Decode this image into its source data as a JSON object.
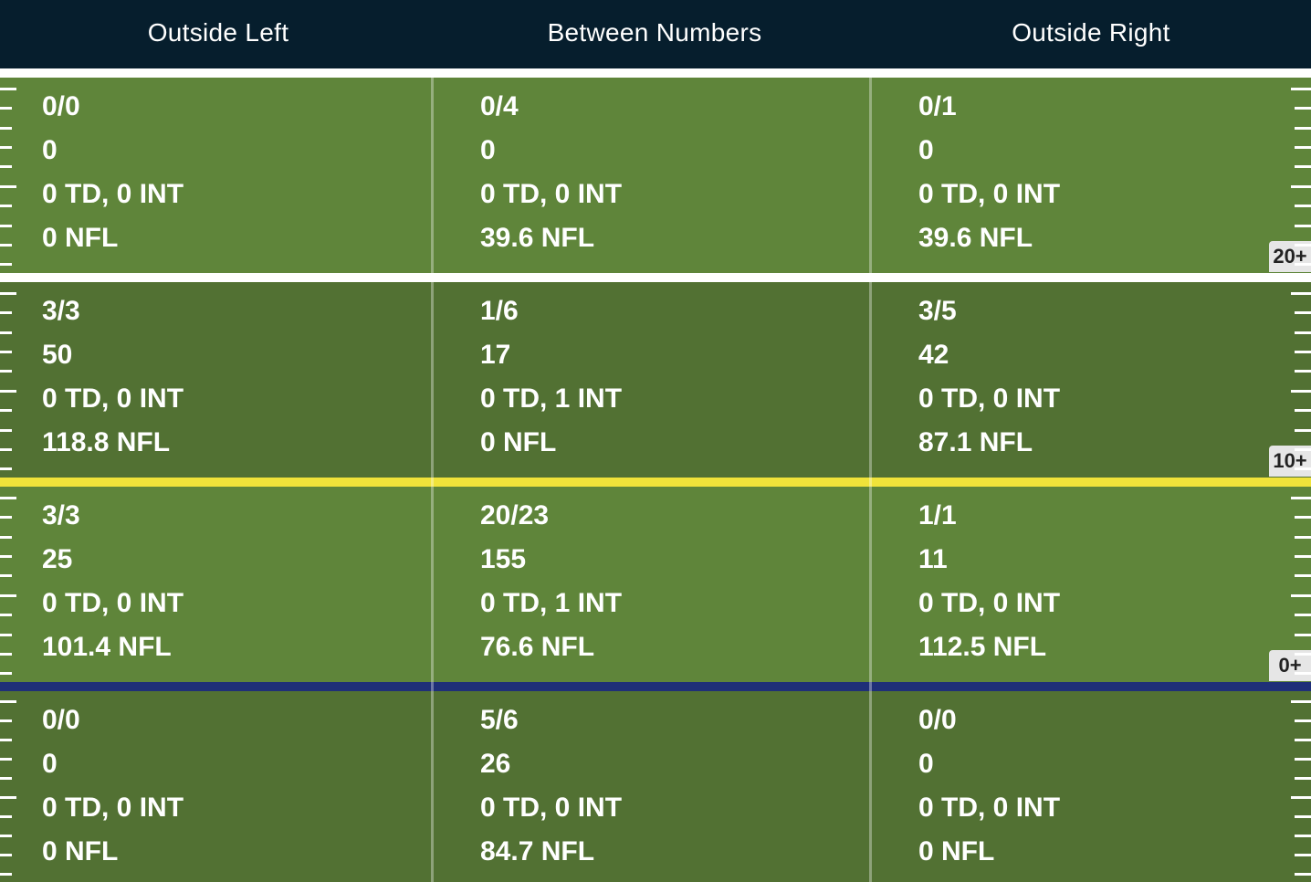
{
  "header": {
    "columns": [
      "Outside Left",
      "Between Numbers",
      "Outside Right"
    ]
  },
  "zones": [
    {
      "distance_label": "20+",
      "cells": [
        {
          "completions": "0/0",
          "yards": "0",
          "td_int": "0 TD, 0 INT",
          "rating": "0 NFL"
        },
        {
          "completions": "0/4",
          "yards": "0",
          "td_int": "0 TD, 0 INT",
          "rating": "39.6 NFL"
        },
        {
          "completions": "0/1",
          "yards": "0",
          "td_int": "0 TD, 0 INT",
          "rating": "39.6 NFL"
        }
      ]
    },
    {
      "distance_label": "10+",
      "cells": [
        {
          "completions": "3/3",
          "yards": "50",
          "td_int": "0 TD, 0 INT",
          "rating": "118.8 NFL"
        },
        {
          "completions": "1/6",
          "yards": "17",
          "td_int": "0 TD, 1 INT",
          "rating": "0 NFL"
        },
        {
          "completions": "3/5",
          "yards": "42",
          "td_int": "0 TD, 0 INT",
          "rating": "87.1 NFL"
        }
      ]
    },
    {
      "distance_label": "0+",
      "cells": [
        {
          "completions": "3/3",
          "yards": "25",
          "td_int": "0 TD, 0 INT",
          "rating": "101.4 NFL"
        },
        {
          "completions": "20/23",
          "yards": "155",
          "td_int": "0 TD, 1 INT",
          "rating": "76.6 NFL"
        },
        {
          "completions": "1/1",
          "yards": "11",
          "td_int": "0 TD, 0 INT",
          "rating": "112.5 NFL"
        }
      ]
    },
    {
      "distance_label": "",
      "cells": [
        {
          "completions": "0/0",
          "yards": "0",
          "td_int": "0 TD, 0 INT",
          "rating": "0 NFL"
        },
        {
          "completions": "5/6",
          "yards": "26",
          "td_int": "0 TD, 0 INT",
          "rating": "84.7 NFL"
        },
        {
          "completions": "0/0",
          "yards": "0",
          "td_int": "0 TD, 0 INT",
          "rating": "0 NFL"
        }
      ]
    }
  ],
  "colors": {
    "header_bg": "#061e2d",
    "field_light": "#5f853a",
    "field_dark": "#527133",
    "line_of_scrimmage": "#1f2f78",
    "first_down_line": "#f0e33a"
  }
}
